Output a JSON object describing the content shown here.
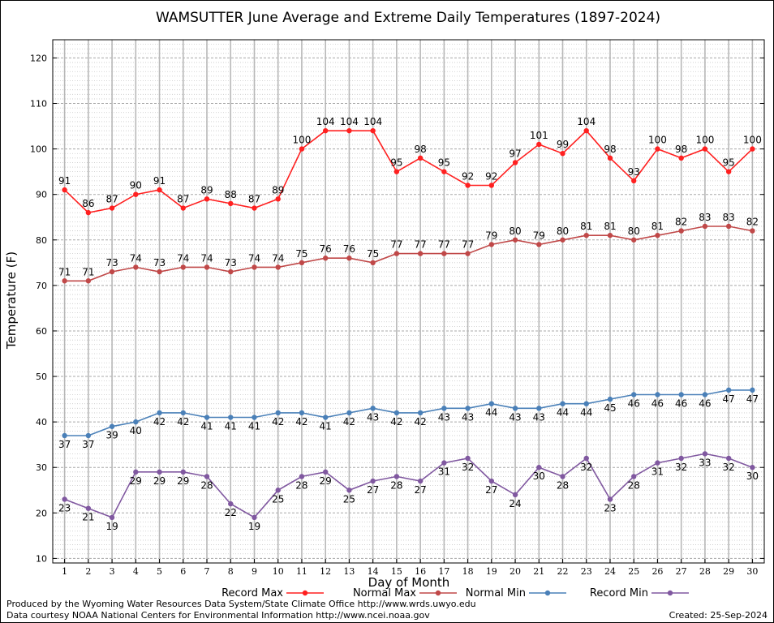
{
  "chart_data": {
    "type": "line",
    "title": "WAMSUTTER June Average and Extreme Daily Temperatures (1897-2024)",
    "xlabel": "Day of Month",
    "ylabel": "Temperature (F)",
    "x": [
      1,
      2,
      3,
      4,
      5,
      6,
      7,
      8,
      9,
      10,
      11,
      12,
      13,
      14,
      15,
      16,
      17,
      18,
      19,
      20,
      21,
      22,
      23,
      24,
      25,
      26,
      27,
      28,
      29,
      30
    ],
    "xlim": [
      0.5,
      30.5
    ],
    "ylim": [
      9,
      124
    ],
    "yticks": [
      10,
      20,
      30,
      40,
      50,
      60,
      70,
      80,
      90,
      100,
      110,
      120
    ],
    "grid": true,
    "legend": "bottom",
    "series": [
      {
        "name": "Record Max",
        "color": "#ff2020",
        "labels": "above",
        "values": [
          91,
          86,
          87,
          90,
          91,
          87,
          89,
          88,
          87,
          89,
          100,
          104,
          104,
          104,
          95,
          98,
          95,
          92,
          92,
          97,
          101,
          99,
          104,
          98,
          93,
          100,
          98,
          100,
          95,
          100
        ]
      },
      {
        "name": "Normal Max",
        "color": "#c04848",
        "labels": "above",
        "values": [
          71,
          71,
          73,
          74,
          73,
          74,
          74,
          73,
          74,
          74,
          75,
          76,
          76,
          75,
          77,
          77,
          77,
          77,
          79,
          80,
          79,
          80,
          81,
          81,
          80,
          81,
          82,
          83,
          83,
          82
        ]
      },
      {
        "name": "Normal Min",
        "color": "#4a80b8",
        "labels": "below",
        "values": [
          37,
          37,
          39,
          40,
          42,
          42,
          41,
          41,
          41,
          42,
          42,
          41,
          42,
          43,
          42,
          42,
          43,
          43,
          44,
          43,
          43,
          44,
          44,
          45,
          46,
          46,
          46,
          46,
          47,
          47
        ]
      },
      {
        "name": "Record Min",
        "color": "#8058a0",
        "labels": "below",
        "values": [
          23,
          21,
          19,
          29,
          29,
          29,
          28,
          22,
          19,
          25,
          28,
          29,
          25,
          27,
          28,
          27,
          31,
          32,
          27,
          24,
          30,
          28,
          32,
          23,
          28,
          31,
          32,
          33,
          32,
          30
        ]
      }
    ]
  },
  "footer": {
    "credit_line1": "Produced by the Wyoming Water Resources Data System/State Climate Office http://www.wrds.uwyo.edu",
    "credit_line2": "Data courtesy NOAA National Centers for Environmental Information http://www.ncei.noaa.gov",
    "created": "Created:  25-Sep-2024"
  }
}
